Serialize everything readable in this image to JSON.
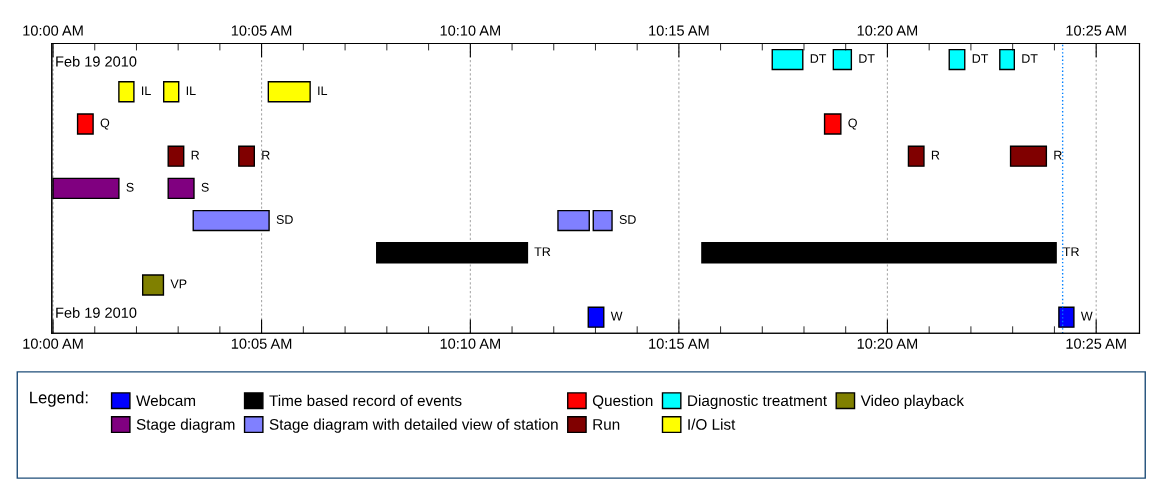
{
  "chart_data": {
    "type": "bar",
    "orientation": "horizontal",
    "categories": [
      null,
      null,
      null,
      null,
      null,
      null,
      null,
      null,
      null
    ],
    "xlim": [
      9.9995,
      10.434
    ],
    "x2lim": [
      9.9995,
      10.434
    ],
    "xticks": [
      {
        "value": 10.0,
        "label": "10:00 AM"
      },
      {
        "value": 10.0833,
        "label": "10:05 AM"
      },
      {
        "value": 10.1667,
        "label": "10:10 AM"
      },
      {
        "value": 10.25,
        "label": "10:15 AM"
      },
      {
        "value": 10.3333,
        "label": "10:20 AM"
      },
      {
        "value": 10.4167,
        "label": "10:25 AM"
      }
    ],
    "x2ticks": [
      {
        "value": 10.0,
        "label": "10:00 AM"
      },
      {
        "value": 10.0833,
        "label": "10:05 AM"
      },
      {
        "value": 10.1667,
        "label": "10:10 AM"
      },
      {
        "value": 10.25,
        "label": "10:15 AM"
      },
      {
        "value": 10.3333,
        "label": "10:20 AM"
      },
      {
        "value": 10.4167,
        "label": "10:25 AM"
      }
    ],
    "grid": "x",
    "legend": "bottom",
    "legend_title": "Legend:",
    "ref_lines": [
      {
        "axis": "x",
        "value": 10.4033,
        "label": null,
        "color": "#0080ff",
        "line_style": "dotted"
      }
    ],
    "annotations": [
      "Feb 19 2010",
      "Feb 19 2010"
    ],
    "series": [
      {
        "name": "Webcam",
        "color": "#0000ff",
        "values": [
          null,
          null,
          null,
          null,
          null,
          null,
          null,
          null,
          0.0062
        ],
        "base": [
          null,
          null,
          null,
          null,
          null,
          null,
          null,
          null,
          10.2138
        ],
        "value_labels": [
          null,
          null,
          null,
          null,
          null,
          null,
          null,
          null,
          "W"
        ]
      },
      {
        "color": "#0000ff",
        "values": [
          null,
          null,
          null,
          null,
          null,
          null,
          null,
          null,
          0.006
        ],
        "base": [
          null,
          null,
          null,
          null,
          null,
          null,
          null,
          null,
          10.4018
        ],
        "value_labels": [
          null,
          null,
          null,
          null,
          null,
          null,
          null,
          null,
          "W"
        ]
      },
      {
        "name": "Stage diagram",
        "color": "#800080",
        "values": [
          null,
          null,
          null,
          null,
          0.0263,
          null,
          null,
          null,
          null
        ],
        "base": [
          null,
          null,
          null,
          null,
          10.0,
          null,
          null,
          null,
          null
        ],
        "value_labels": [
          null,
          null,
          null,
          null,
          "S",
          null,
          null,
          null,
          null
        ]
      },
      {
        "color": "#800080",
        "values": [
          null,
          null,
          null,
          null,
          0.0103,
          null,
          null,
          null,
          null
        ],
        "base": [
          null,
          null,
          null,
          null,
          10.046,
          null,
          null,
          null,
          null
        ],
        "value_labels": [
          null,
          null,
          null,
          null,
          "S",
          null,
          null,
          null,
          null
        ]
      },
      {
        "name": "Time based record of events",
        "color": "#000000",
        "values": [
          null,
          null,
          null,
          null,
          null,
          null,
          0.0602,
          null,
          null
        ],
        "base": [
          null,
          null,
          null,
          null,
          null,
          null,
          10.1293,
          null,
          null
        ],
        "value_labels": [
          null,
          null,
          null,
          null,
          null,
          null,
          "TR",
          null,
          null
        ]
      },
      {
        "color": "#000000",
        "values": [
          null,
          null,
          null,
          null,
          null,
          null,
          0.1415,
          null,
          null
        ],
        "base": [
          null,
          null,
          null,
          null,
          null,
          null,
          10.2592,
          null,
          null
        ],
        "value_labels": [
          null,
          null,
          null,
          null,
          null,
          null,
          "TR",
          null,
          null
        ]
      },
      {
        "name": "Stage diagram with detailed view of station",
        "color": "#8080ff",
        "values": [
          null,
          null,
          null,
          null,
          null,
          0.0303,
          null,
          null,
          null
        ],
        "base": [
          null,
          null,
          null,
          null,
          null,
          10.056,
          null,
          null,
          null
        ],
        "value_labels": [
          null,
          null,
          null,
          null,
          null,
          "SD",
          null,
          null,
          null
        ]
      },
      {
        "color": "#8080ff",
        "values": [
          null,
          null,
          null,
          null,
          null,
          0.0125,
          null,
          null,
          null
        ],
        "base": [
          null,
          null,
          null,
          null,
          null,
          10.2017,
          null,
          null,
          null
        ],
        "value_labels": [
          null,
          null,
          null,
          null,
          null,
          null,
          null,
          null,
          null
        ]
      },
      {
        "color": "#8080ff",
        "values": [
          null,
          null,
          null,
          null,
          null,
          0.0075,
          null,
          null,
          null
        ],
        "base": [
          null,
          null,
          null,
          null,
          null,
          10.2158,
          null,
          null,
          null
        ],
        "value_labels": [
          null,
          null,
          null,
          null,
          null,
          "SD",
          null,
          null,
          null
        ]
      },
      {
        "name": "Question",
        "color": "#ff0000",
        "values": [
          null,
          null,
          0.0062,
          null,
          null,
          null,
          null,
          null,
          null
        ],
        "base": [
          null,
          null,
          10.0098,
          null,
          null,
          null,
          null,
          null,
          null
        ],
        "value_labels": [
          null,
          null,
          "Q",
          null,
          null,
          null,
          null,
          null,
          null
        ]
      },
      {
        "color": "#ff0000",
        "values": [
          null,
          null,
          0.0065,
          null,
          null,
          null,
          null,
          null,
          null
        ],
        "base": [
          null,
          null,
          10.3082,
          null,
          null,
          null,
          null,
          null,
          null
        ],
        "value_labels": [
          null,
          null,
          "Q",
          null,
          null,
          null,
          null,
          null,
          null
        ]
      },
      {
        "name": "Run",
        "color": "#800000",
        "values": [
          null,
          null,
          null,
          0.0062,
          null,
          null,
          null,
          null,
          null
        ],
        "base": [
          null,
          null,
          null,
          10.046,
          null,
          null,
          null,
          null,
          null
        ],
        "value_labels": [
          null,
          null,
          null,
          "R",
          null,
          null,
          null,
          null,
          null
        ]
      },
      {
        "color": "#800000",
        "values": [
          null,
          null,
          null,
          0.0062,
          null,
          null,
          null,
          null,
          null
        ],
        "base": [
          null,
          null,
          null,
          10.0742,
          null,
          null,
          null,
          null,
          null
        ],
        "value_labels": [
          null,
          null,
          null,
          "R",
          null,
          null,
          null,
          null,
          null
        ]
      },
      {
        "color": "#800000",
        "values": [
          null,
          null,
          null,
          0.0062,
          null,
          null,
          null,
          null,
          null
        ],
        "base": [
          null,
          null,
          null,
          10.3417,
          null,
          null,
          null,
          null,
          null
        ],
        "value_labels": [
          null,
          null,
          null,
          "R",
          null,
          null,
          null,
          null,
          null
        ]
      },
      {
        "color": "#800000",
        "values": [
          null,
          null,
          null,
          0.0143,
          null,
          null,
          null,
          null,
          null
        ],
        "base": [
          null,
          null,
          null,
          10.3825,
          null,
          null,
          null,
          null,
          null
        ],
        "value_labels": [
          null,
          null,
          null,
          "R",
          null,
          null,
          null,
          null,
          null
        ]
      },
      {
        "name": "Diagnostic treatment",
        "color": "#00ffff",
        "values": [
          0.0122,
          null,
          null,
          null,
          null,
          null,
          null,
          null,
          null
        ],
        "base": [
          10.2873,
          null,
          null,
          null,
          null,
          null,
          null,
          null,
          null
        ],
        "value_labels": [
          "DT",
          null,
          null,
          null,
          null,
          null,
          null,
          null,
          null
        ]
      },
      {
        "color": "#00ffff",
        "values": [
          0.0072,
          null,
          null,
          null,
          null,
          null,
          null,
          null,
          null
        ],
        "base": [
          10.3117,
          null,
          null,
          null,
          null,
          null,
          null,
          null,
          null
        ],
        "value_labels": [
          "DT",
          null,
          null,
          null,
          null,
          null,
          null,
          null,
          null
        ]
      },
      {
        "color": "#00ffff",
        "values": [
          0.0062,
          null,
          null,
          null,
          null,
          null,
          null,
          null,
          null
        ],
        "base": [
          10.358,
          null,
          null,
          null,
          null,
          null,
          null,
          null,
          null
        ],
        "value_labels": [
          "DT",
          null,
          null,
          null,
          null,
          null,
          null,
          null,
          null
        ]
      },
      {
        "color": "#00ffff",
        "values": [
          0.0058,
          null,
          null,
          null,
          null,
          null,
          null,
          null,
          null
        ],
        "base": [
          10.3782,
          null,
          null,
          null,
          null,
          null,
          null,
          null,
          null
        ],
        "value_labels": [
          "DT",
          null,
          null,
          null,
          null,
          null,
          null,
          null,
          null
        ]
      },
      {
        "name": "I/O List",
        "color": "#ffff00",
        "values": [
          null,
          0.006,
          null,
          null,
          null,
          null,
          null,
          null,
          null
        ],
        "base": [
          null,
          10.0263,
          null,
          null,
          null,
          null,
          null,
          null,
          null
        ],
        "value_labels": [
          null,
          "IL",
          null,
          null,
          null,
          null,
          null,
          null,
          null
        ]
      },
      {
        "color": "#ffff00",
        "values": [
          null,
          0.006,
          null,
          null,
          null,
          null,
          null,
          null,
          null
        ],
        "base": [
          null,
          10.0442,
          null,
          null,
          null,
          null,
          null,
          null,
          null
        ],
        "value_labels": [
          null,
          "IL",
          null,
          null,
          null,
          null,
          null,
          null,
          null
        ]
      },
      {
        "color": "#ffff00",
        "values": [
          null,
          0.0167,
          null,
          null,
          null,
          null,
          null,
          null,
          null
        ],
        "base": [
          null,
          10.086,
          null,
          null,
          null,
          null,
          null,
          null,
          null
        ],
        "value_labels": [
          null,
          "IL",
          null,
          null,
          null,
          null,
          null,
          null,
          null
        ]
      },
      {
        "name": "Video playback",
        "color": "#808000",
        "values": [
          null,
          null,
          null,
          null,
          null,
          null,
          null,
          0.0083,
          null
        ],
        "base": [
          null,
          null,
          null,
          null,
          null,
          null,
          null,
          10.0358,
          null
        ],
        "value_labels": [
          null,
          null,
          null,
          null,
          null,
          null,
          null,
          "VP",
          null
        ]
      }
    ]
  }
}
